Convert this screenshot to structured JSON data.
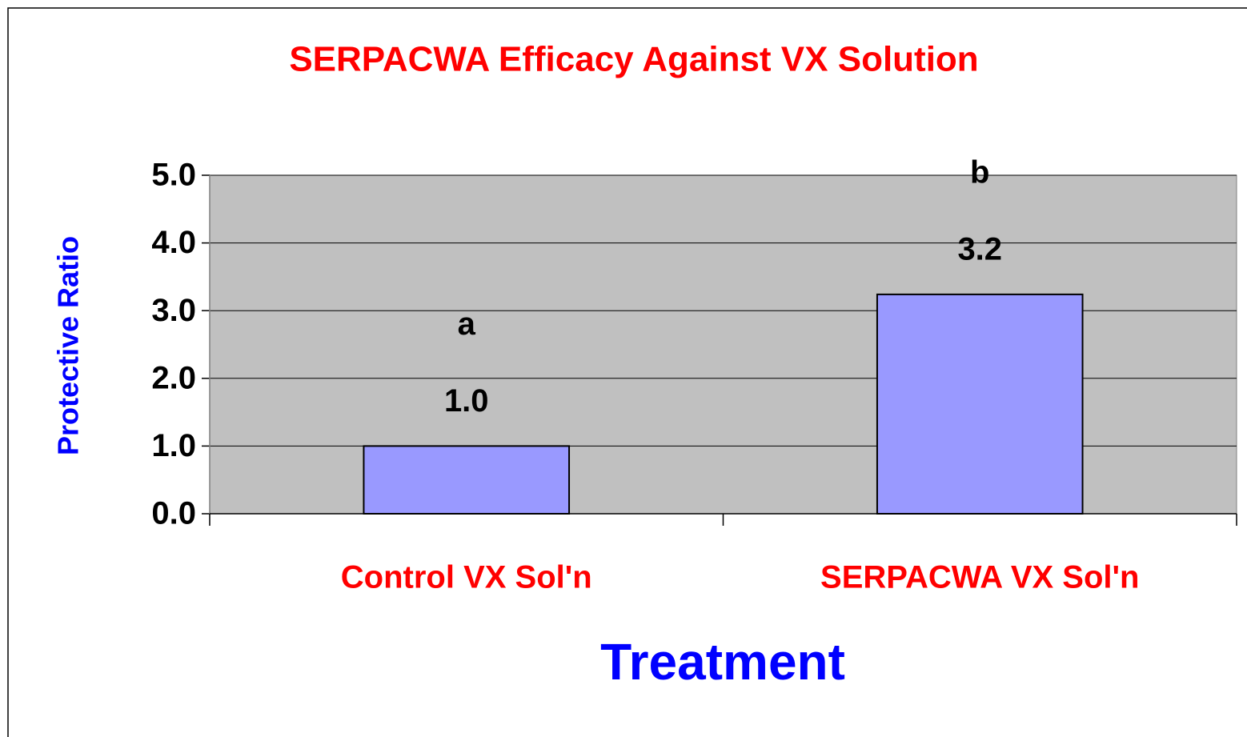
{
  "chart_data": {
    "type": "bar",
    "title": "SERPACWA Efficacy Against VX Solution",
    "x_label": "Treatment",
    "y_label": "Protective Ratio",
    "categories": [
      "Control VX Sol'n",
      "SERPACWA VX Sol'n"
    ],
    "values": [
      1.0,
      3.24
    ],
    "value_labels": [
      "1.0",
      "3.2"
    ],
    "significance_labels": [
      "a",
      "b"
    ],
    "color": "#9999ff",
    "ylim": [
      0,
      5
    ],
    "yticks": [
      {
        "value": 0,
        "label": "0.0"
      },
      {
        "value": 1,
        "label": "1.0"
      },
      {
        "value": 2,
        "label": "2.0"
      },
      {
        "value": 3,
        "label": "3.0"
      },
      {
        "value": 4,
        "label": "4.0"
      },
      {
        "value": 5,
        "label": "5.0"
      }
    ],
    "grid": true
  }
}
